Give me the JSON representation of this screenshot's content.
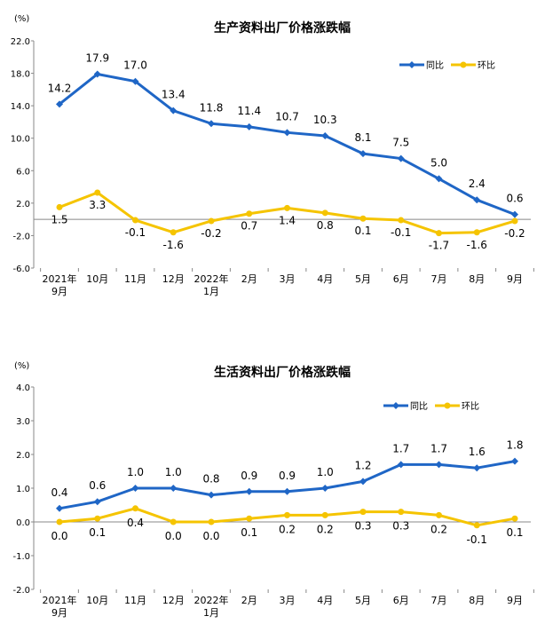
{
  "chart_data": [
    {
      "type": "line",
      "title": "生产资料出厂价格涨跌幅",
      "unit": "(%)",
      "categories": [
        [
          "2021年",
          "9月"
        ],
        [
          "10月"
        ],
        [
          "11月"
        ],
        [
          "12月"
        ],
        [
          "2022年",
          "1月"
        ],
        [
          "2月"
        ],
        [
          "3月"
        ],
        [
          "4月"
        ],
        [
          "5月"
        ],
        [
          "6月"
        ],
        [
          "7月"
        ],
        [
          "8月"
        ],
        [
          "9月"
        ]
      ],
      "ylim": [
        -6.0,
        22.0
      ],
      "yticks": [
        "22.0",
        "18.0",
        "14.0",
        "10.0",
        "6.0",
        "2.0",
        "-2.0",
        "-6.0"
      ],
      "grid": false,
      "legend": "top-right",
      "series": [
        {
          "name": "同比",
          "color": "#1f66c6",
          "values": [
            14.2,
            17.9,
            17.0,
            13.4,
            11.8,
            11.4,
            10.7,
            10.3,
            8.1,
            7.5,
            5.0,
            2.4,
            0.6
          ],
          "labels": [
            "14.2",
            "17.9",
            "17.0",
            "13.4",
            "11.8",
            "11.4",
            "10.7",
            "10.3",
            "8.1",
            "7.5",
            "5.0",
            "2.4",
            "0.6"
          ]
        },
        {
          "name": "环比",
          "color": "#f5c400",
          "values": [
            1.5,
            3.3,
            -0.1,
            -1.6,
            -0.2,
            0.7,
            1.4,
            0.8,
            0.1,
            -0.1,
            -1.7,
            -1.6,
            -0.2
          ],
          "labels": [
            "1.5",
            "3.3",
            "-0.1",
            "-1.6",
            "-0.2",
            "0.7",
            "1.4",
            "0.8",
            "0.1",
            "-0.1",
            "-1.7",
            "-1.6",
            "-0.2"
          ]
        }
      ]
    },
    {
      "type": "line",
      "title": "生活资料出厂价格涨跌幅",
      "unit": "(%)",
      "categories": [
        [
          "2021年",
          "9月"
        ],
        [
          "10月"
        ],
        [
          "11月"
        ],
        [
          "12月"
        ],
        [
          "2022年",
          "1月"
        ],
        [
          "2月"
        ],
        [
          "3月"
        ],
        [
          "4月"
        ],
        [
          "5月"
        ],
        [
          "6月"
        ],
        [
          "7月"
        ],
        [
          "8月"
        ],
        [
          "9月"
        ]
      ],
      "ylim": [
        -2.0,
        4.0
      ],
      "yticks": [
        "4.0",
        "3.0",
        "2.0",
        "1.0",
        "0.0",
        "-1.0",
        "-2.0"
      ],
      "grid": false,
      "legend": "top-right",
      "series": [
        {
          "name": "同比",
          "color": "#1f66c6",
          "values": [
            0.4,
            0.6,
            1.0,
            1.0,
            0.8,
            0.9,
            0.9,
            1.0,
            1.2,
            1.7,
            1.7,
            1.6,
            1.8
          ],
          "labels": [
            "0.4",
            "0.6",
            "1.0",
            "1.0",
            "0.8",
            "0.9",
            "0.9",
            "1.0",
            "1.2",
            "1.7",
            "1.7",
            "1.6",
            "1.8"
          ]
        },
        {
          "name": "环比",
          "color": "#f5c400",
          "values": [
            0.0,
            0.1,
            0.4,
            0.0,
            0.0,
            0.1,
            0.2,
            0.2,
            0.3,
            0.3,
            0.2,
            -0.1,
            0.1
          ],
          "labels": [
            "0.0",
            "0.1",
            "0.4",
            "0.0",
            "0.0",
            "0.1",
            "0.2",
            "0.2",
            "0.3",
            "0.3",
            "0.2",
            "-0.1",
            "0.1"
          ]
        }
      ]
    }
  ]
}
